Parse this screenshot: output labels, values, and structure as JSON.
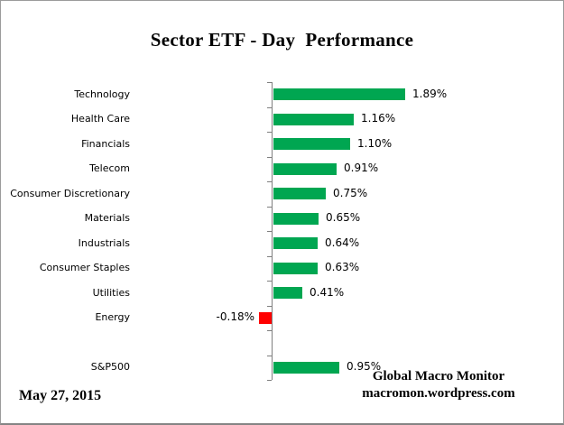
{
  "title": "Sector ETF - Day  Performance",
  "chart_data": {
    "type": "bar",
    "orientation": "horizontal",
    "title": "Sector ETF - Day  Performance",
    "categories": [
      "Technology",
      "Health Care",
      "Financials",
      "Telecom",
      "Consumer Discretionary",
      "Materials",
      "Industrials",
      "Consumer Staples",
      "Utilities",
      "Energy",
      "",
      "S&P500"
    ],
    "values": [
      1.89,
      1.16,
      1.1,
      0.91,
      0.75,
      0.65,
      0.64,
      0.63,
      0.41,
      -0.18,
      null,
      0.95
    ],
    "value_labels": [
      "1.89%",
      "1.16%",
      "1.10%",
      "0.91%",
      "0.75%",
      "0.65%",
      "0.64%",
      "0.63%",
      "0.41%",
      "-0.18%",
      "",
      "0.95%"
    ],
    "unit": "%",
    "baseline": 0,
    "grid": false,
    "legend": false,
    "colors": {
      "positive_bar": "#00A651",
      "negative_bar": "#FF0000",
      "axis": "#7F7F7F",
      "text": "#000000"
    }
  },
  "footer": {
    "date": "May 27, 2015",
    "source_line1": "Global Macro Monitor",
    "source_line2": "macromon.wordpress.com"
  }
}
